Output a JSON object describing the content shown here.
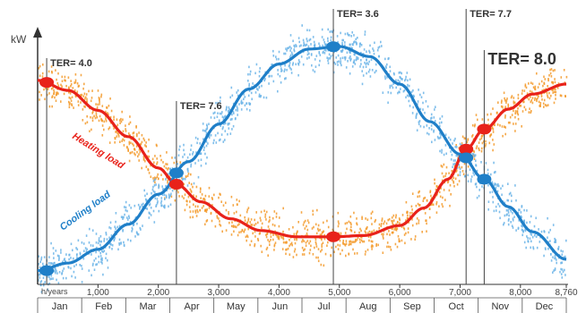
{
  "chart_data": {
    "type": "line",
    "title": "",
    "ylabel": "kW",
    "x_unit_label": "h/years",
    "xlim": [
      0,
      8760
    ],
    "x_ticks": [
      1000,
      2000,
      3000,
      4000,
      5000,
      6000,
      7000,
      8000,
      8760
    ],
    "x_tick_labels": [
      "1,000",
      "2,000",
      "3,000",
      "4,000",
      "5,000",
      "6,000",
      "7,000",
      "8,000",
      "8,760"
    ],
    "months": [
      "Jan",
      "Feb",
      "Mar",
      "Apr",
      "May",
      "Jun",
      "Jul",
      "Aug",
      "Sep",
      "Oct",
      "Nov",
      "Dec"
    ],
    "ylim": [
      0,
      1
    ],
    "grid": false,
    "series": [
      {
        "name": "Heating load",
        "color": "#e8221a",
        "scatter_color": "#f39a2a",
        "x": [
          0,
          500,
          1000,
          1500,
          2000,
          2300,
          2700,
          3200,
          3700,
          4300,
          4900,
          5400,
          6000,
          6400,
          6800,
          7100,
          7400,
          7800,
          8200,
          8760
        ],
        "y": [
          0.815,
          0.775,
          0.695,
          0.59,
          0.465,
          0.4,
          0.33,
          0.262,
          0.215,
          0.19,
          0.19,
          0.195,
          0.235,
          0.305,
          0.42,
          0.54,
          0.62,
          0.7,
          0.76,
          0.8
        ]
      },
      {
        "name": "Cooling load",
        "color": "#1f7fc8",
        "scatter_color": "#6bb4e8",
        "x": [
          0,
          500,
          1000,
          1500,
          2000,
          2500,
          3000,
          3500,
          4000,
          4500,
          5000,
          5500,
          6000,
          6500,
          7000,
          7400,
          7800,
          8200,
          8760
        ],
        "y": [
          0.055,
          0.085,
          0.14,
          0.24,
          0.36,
          0.49,
          0.64,
          0.78,
          0.88,
          0.94,
          0.95,
          0.91,
          0.8,
          0.65,
          0.52,
          0.42,
          0.31,
          0.21,
          0.1
        ]
      }
    ],
    "annotations": [
      {
        "text": "TER= 4.0",
        "x": 150,
        "y": 0.815,
        "dot_series": "Heating load"
      },
      {
        "text": "TER= 7.6",
        "x": 2300,
        "y": 0.4,
        "dot_series": "both"
      },
      {
        "text": "TER= 3.6",
        "x": 4900,
        "y": 0.95,
        "dot_series": "both"
      },
      {
        "text": "TER= 7.7",
        "x": 7100,
        "y": 0.54,
        "dot_series": "both"
      },
      {
        "text": "TER= 8.0",
        "x": 7400,
        "y": 0.62,
        "dot_series": "both"
      }
    ],
    "cooling_start_dot": {
      "x": 150,
      "y": 0.055
    }
  }
}
